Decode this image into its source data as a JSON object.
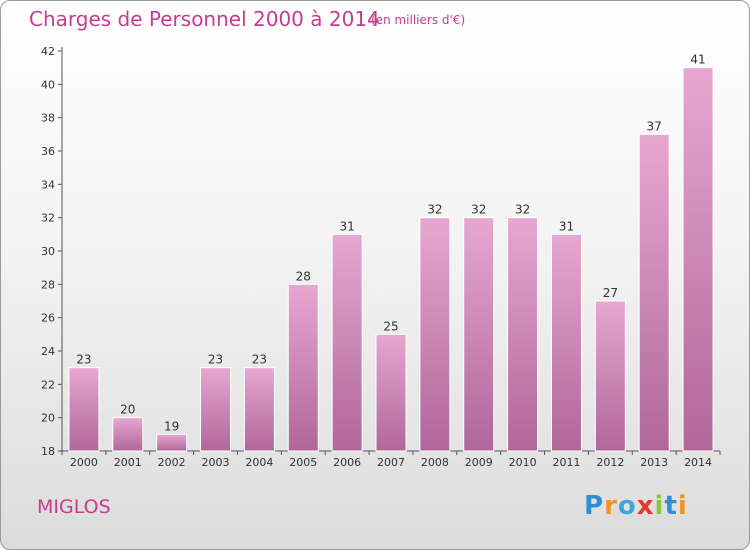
{
  "header": {
    "title": "Charges de Personnel 2000 à 2014",
    "subtitle": "(en milliers d'€)"
  },
  "footer": {
    "commune": "MIGLOS",
    "logo_text": "Proxiti",
    "logo_letters": [
      {
        "ch": "P",
        "color": "#2f8fd0"
      },
      {
        "ch": "r",
        "color": "#f0951e"
      },
      {
        "ch": "o",
        "color": "#3aa8d8"
      },
      {
        "ch": "x",
        "color": "#e03a2c"
      },
      {
        "ch": "i",
        "color": "#8cc63f"
      },
      {
        "ch": "t",
        "color": "#2f8fd0"
      },
      {
        "ch": "i",
        "color": "#f0951e"
      }
    ]
  },
  "colors": {
    "accent": "#c73c8f",
    "bar_top": "#e6a7d0",
    "bar_bottom": "#b0679a"
  },
  "chart_data": {
    "type": "bar",
    "categories": [
      "2000",
      "2001",
      "2002",
      "2003",
      "2004",
      "2005",
      "2006",
      "2007",
      "2008",
      "2009",
      "2010",
      "2011",
      "2012",
      "2013",
      "2014"
    ],
    "values": [
      23,
      20,
      19,
      23,
      23,
      28,
      31,
      25,
      32,
      32,
      32,
      31,
      27,
      37,
      41
    ],
    "title": "Charges de Personnel 2000 à 2014",
    "subtitle": "(en milliers d'€)",
    "xlabel": "",
    "ylabel": "",
    "ylim": [
      18,
      42
    ],
    "yticks": [
      18,
      20,
      22,
      24,
      26,
      28,
      30,
      32,
      34,
      36,
      38,
      40,
      42
    ],
    "grid": false,
    "data_labels": true
  }
}
